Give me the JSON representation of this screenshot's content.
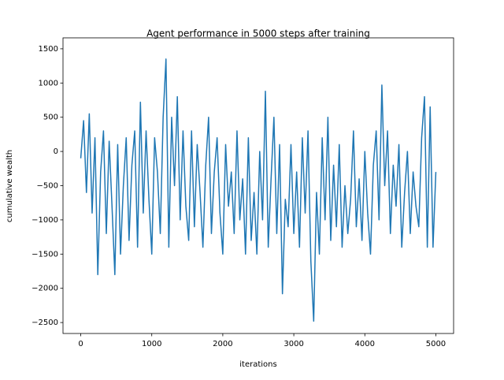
{
  "chart_data": {
    "type": "line",
    "title": "Agent performance in 5000 steps after training",
    "xlabel": "iterations",
    "ylabel": "cumulative wealth",
    "color": "#1f77b4",
    "x": [
      0,
      40,
      80,
      120,
      160,
      200,
      240,
      280,
      320,
      360,
      400,
      440,
      480,
      520,
      560,
      600,
      640,
      680,
      720,
      760,
      800,
      840,
      880,
      920,
      960,
      1000,
      1040,
      1080,
      1120,
      1160,
      1200,
      1240,
      1280,
      1320,
      1360,
      1400,
      1440,
      1480,
      1520,
      1560,
      1600,
      1640,
      1680,
      1720,
      1760,
      1800,
      1840,
      1880,
      1920,
      1960,
      2000,
      2040,
      2080,
      2120,
      2160,
      2200,
      2240,
      2280,
      2320,
      2360,
      2400,
      2440,
      2480,
      2520,
      2560,
      2600,
      2640,
      2680,
      2720,
      2760,
      2800,
      2840,
      2880,
      2920,
      2960,
      3000,
      3040,
      3080,
      3120,
      3160,
      3200,
      3240,
      3280,
      3320,
      3360,
      3400,
      3440,
      3480,
      3520,
      3560,
      3600,
      3640,
      3680,
      3720,
      3760,
      3800,
      3840,
      3880,
      3920,
      3960,
      4000,
      4040,
      4080,
      4120,
      4160,
      4200,
      4240,
      4280,
      4320,
      4360,
      4400,
      4440,
      4480,
      4520,
      4560,
      4600,
      4640,
      4680,
      4720,
      4760,
      4800,
      4840,
      4880,
      4920,
      4960,
      5000
    ],
    "values": [
      -100,
      450,
      -600,
      550,
      -900,
      200,
      -1800,
      -300,
      300,
      -1200,
      150,
      -800,
      -1800,
      100,
      -1500,
      -500,
      200,
      -1300,
      -200,
      300,
      -1400,
      720,
      -900,
      300,
      -700,
      -1500,
      200,
      -300,
      -1200,
      500,
      1350,
      -1400,
      500,
      -500,
      800,
      -1000,
      300,
      -800,
      -1300,
      300,
      -1100,
      100,
      -600,
      -1400,
      -200,
      500,
      -1200,
      -300,
      200,
      -900,
      -1500,
      100,
      -800,
      -300,
      -1200,
      300,
      -1000,
      -400,
      -1500,
      200,
      -1300,
      -600,
      -1500,
      0,
      -1000,
      880,
      -1400,
      -400,
      500,
      -1200,
      100,
      -2080,
      -700,
      -1100,
      100,
      -1200,
      -300,
      -1400,
      200,
      -900,
      300,
      -1600,
      -2480,
      -600,
      -1500,
      200,
      -1000,
      500,
      -1300,
      -200,
      -1100,
      100,
      -1400,
      -500,
      -1200,
      -700,
      300,
      -1100,
      -400,
      -1300,
      0,
      -900,
      -1500,
      -200,
      300,
      -1000,
      970,
      -500,
      300,
      -1200,
      -200,
      -800,
      100,
      -1400,
      -600,
      0,
      -1200,
      -300,
      -800,
      -1100,
      200,
      800,
      -1400,
      650,
      -1400,
      -300
    ],
    "xlim": [
      -250,
      5250
    ],
    "ylim": [
      -2660,
      1660
    ],
    "xticks": [
      0,
      1000,
      2000,
      3000,
      4000,
      5000
    ],
    "yticks": [
      {
        "value": -2500,
        "label": "−2500"
      },
      {
        "value": -2000,
        "label": "−2000"
      },
      {
        "value": -1500,
        "label": "−1500"
      },
      {
        "value": -1000,
        "label": "−1000"
      },
      {
        "value": -500,
        "label": "−500"
      },
      0,
      500,
      1000,
      1500
    ]
  }
}
